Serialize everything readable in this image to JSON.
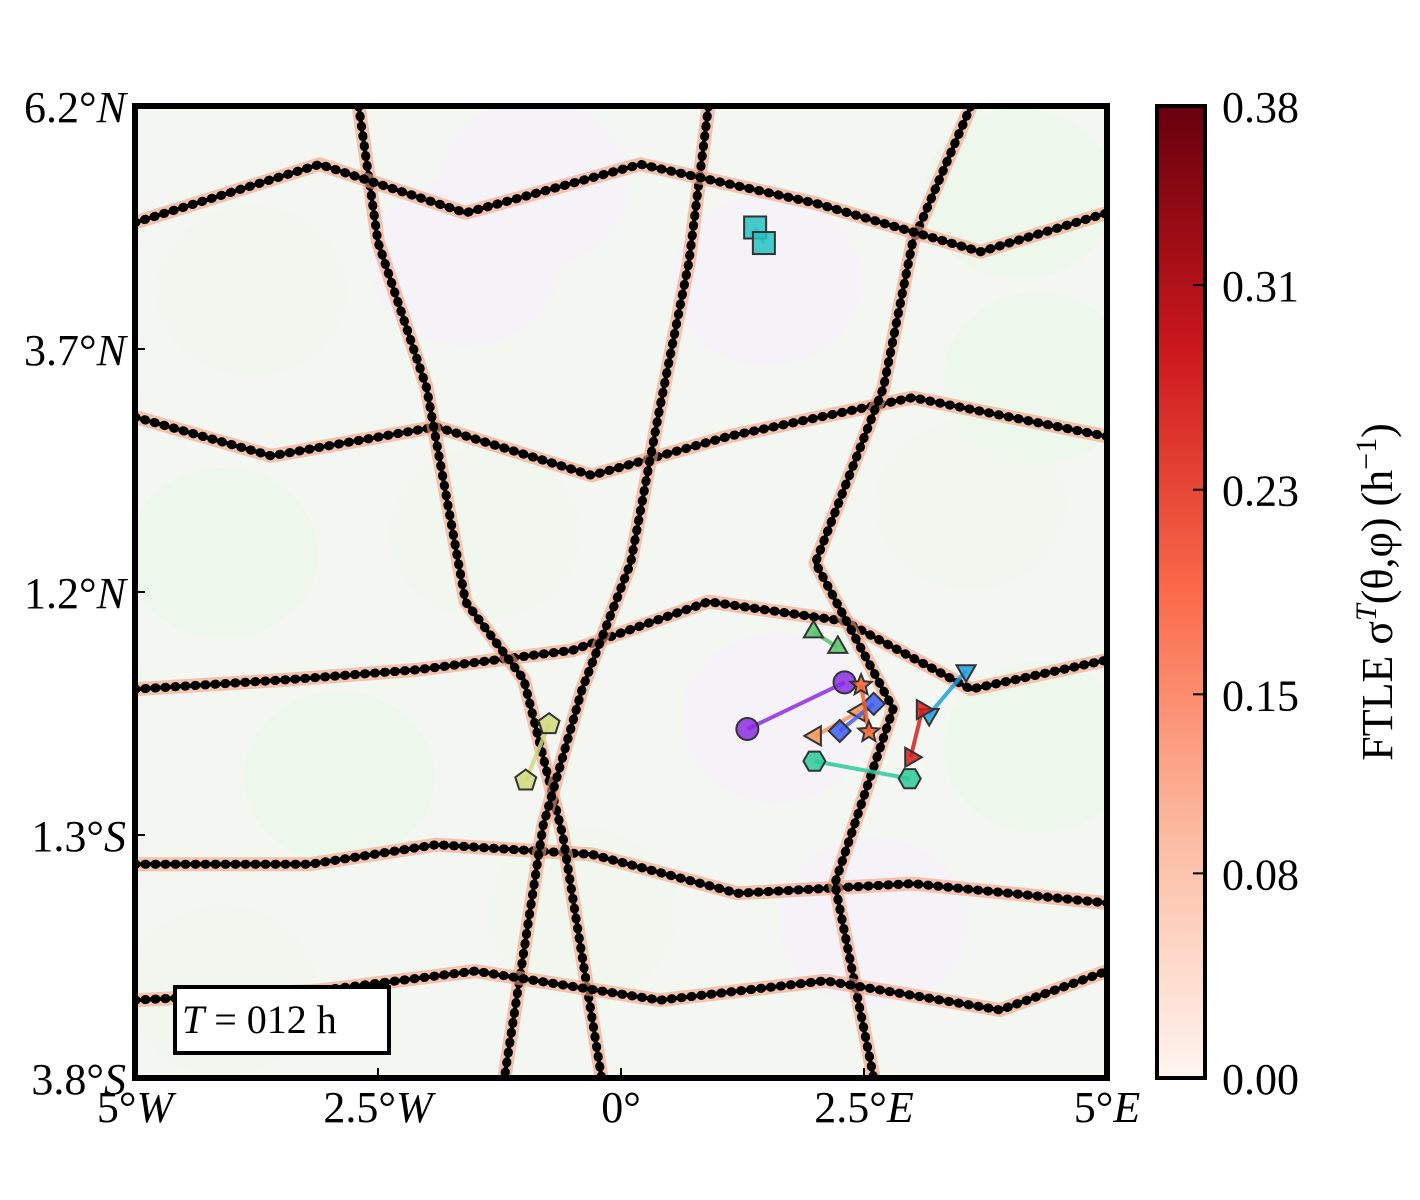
{
  "chart_data": {
    "type": "heatmap",
    "title": "",
    "xlabel": "",
    "ylabel": "",
    "xlim": [
      -5,
      5
    ],
    "ylim": [
      -3.8,
      6.2
    ],
    "x_ticks": [
      {
        "value": -5,
        "label": "5°W"
      },
      {
        "value": -2.5,
        "label": "2.5°W"
      },
      {
        "value": 0,
        "label": "0°"
      },
      {
        "value": 2.5,
        "label": "2.5°E"
      },
      {
        "value": 5,
        "label": "5°E"
      }
    ],
    "y_ticks": [
      {
        "value": 6.2,
        "label": "6.2°N"
      },
      {
        "value": 3.7,
        "label": "3.7°N"
      },
      {
        "value": 1.2,
        "label": "1.2°N"
      },
      {
        "value": -1.3,
        "label": "1.3°S"
      },
      {
        "value": -3.8,
        "label": "3.8°S"
      }
    ],
    "colorbar": {
      "label": "FTLE  σT(θ,φ) (h−1)",
      "label_parts": {
        "prefix": "FTLE  σ",
        "sup": "T",
        "middle": "(θ,φ) (h",
        "unit_sup": "−1",
        "suffix": ")"
      },
      "min": 0.0,
      "max": 0.38,
      "ticks": [
        0.0,
        0.08,
        0.15,
        0.23,
        0.31,
        0.38
      ],
      "tick_labels": [
        "0.00",
        "0.08",
        "0.15",
        "0.23",
        "0.31",
        "0.38"
      ],
      "colormap": "Reds"
    },
    "annotation": {
      "prefix": "T",
      "suffix": " = 012 h"
    },
    "grid": false,
    "cells": [
      {
        "x": -3.8,
        "y": 4.3
      },
      {
        "x": -1.6,
        "y": 4.6
      },
      {
        "x": -4.1,
        "y": 1.6
      },
      {
        "x": -1.4,
        "y": 1.8
      },
      {
        "x": 1.5,
        "y": 4.4
      },
      {
        "x": 4.1,
        "y": 5.3
      },
      {
        "x": 3.6,
        "y": 2.1
      },
      {
        "x": 1.6,
        "y": -0.1
      },
      {
        "x": -2.9,
        "y": -0.7
      },
      {
        "x": -0.4,
        "y": -2.1
      },
      {
        "x": 2.6,
        "y": -2.2
      },
      {
        "x": 4.3,
        "y": -0.4
      },
      {
        "x": -4.1,
        "y": -2.9
      },
      {
        "x": -0.9,
        "y": 5.4
      },
      {
        "x": 4.3,
        "y": 3.4
      }
    ],
    "lanes": [
      [
        [
          -5.0,
          3.0
        ],
        [
          -3.6,
          2.6
        ],
        [
          -1.9,
          2.9
        ],
        [
          -0.3,
          2.4
        ],
        [
          1.1,
          2.8
        ],
        [
          3.0,
          3.2
        ],
        [
          5.0,
          2.8
        ]
      ],
      [
        [
          -5.0,
          0.2
        ],
        [
          -3.4,
          0.3
        ],
        [
          -2.1,
          0.4
        ],
        [
          -0.5,
          0.6
        ],
        [
          0.9,
          1.1
        ],
        [
          2.3,
          0.9
        ],
        [
          3.6,
          0.2
        ],
        [
          5.0,
          0.5
        ]
      ],
      [
        [
          -5.0,
          -1.6
        ],
        [
          -3.2,
          -1.6
        ],
        [
          -1.9,
          -1.4
        ],
        [
          -0.3,
          -1.5
        ],
        [
          1.2,
          -1.9
        ],
        [
          3.0,
          -1.8
        ],
        [
          5.0,
          -2.0
        ]
      ],
      [
        [
          -2.7,
          6.2
        ],
        [
          -2.5,
          4.8
        ],
        [
          -2.0,
          3.3
        ],
        [
          -1.6,
          1.1
        ],
        [
          -1.0,
          0.3
        ],
        [
          -0.6,
          -1.3
        ],
        [
          -0.2,
          -3.8
        ]
      ],
      [
        [
          0.9,
          6.2
        ],
        [
          0.7,
          4.6
        ],
        [
          0.4,
          3.1
        ],
        [
          0.1,
          1.5
        ],
        [
          -0.4,
          0.2
        ],
        [
          -0.8,
          -1.2
        ],
        [
          -1.2,
          -3.8
        ]
      ],
      [
        [
          3.6,
          6.2
        ],
        [
          3.0,
          4.8
        ],
        [
          2.7,
          3.3
        ],
        [
          2.0,
          1.5
        ],
        [
          2.8,
          0.0
        ],
        [
          2.2,
          -1.8
        ],
        [
          2.6,
          -3.8
        ]
      ],
      [
        [
          -5.0,
          5.0
        ],
        [
          -3.1,
          5.6
        ],
        [
          -1.6,
          5.1
        ],
        [
          0.2,
          5.6
        ],
        [
          2.0,
          5.2
        ],
        [
          3.7,
          4.7
        ],
        [
          5.0,
          5.1
        ]
      ],
      [
        [
          -5.0,
          -3.0
        ],
        [
          -3.1,
          -2.9
        ],
        [
          -1.5,
          -2.7
        ],
        [
          0.4,
          -3.0
        ],
        [
          2.1,
          -2.8
        ],
        [
          3.9,
          -3.1
        ],
        [
          5.0,
          -2.7
        ]
      ]
    ],
    "trajectories": [
      {
        "marker": "square",
        "color": "#26c2c4",
        "points": [
          [
            1.38,
            4.95
          ],
          [
            1.47,
            4.79
          ]
        ]
      },
      {
        "marker": "circle",
        "color": "#8a2be2",
        "points": [
          [
            1.3,
            -0.21
          ],
          [
            2.3,
            0.27
          ]
        ]
      },
      {
        "marker": "triangle-up",
        "color": "#56c46d",
        "points": [
          [
            1.98,
            0.79
          ],
          [
            2.23,
            0.63
          ]
        ]
      },
      {
        "marker": "triangle-down",
        "color": "#1e9ee0",
        "points": [
          [
            3.55,
            0.39
          ],
          [
            3.17,
            -0.06
          ]
        ]
      },
      {
        "marker": "triangle-right",
        "color": "#d51f1f",
        "points": [
          [
            2.98,
            -0.5
          ],
          [
            3.1,
            -0.01
          ]
        ]
      },
      {
        "marker": "triangle-left",
        "color": "#f59557",
        "points": [
          [
            2.0,
            -0.28
          ],
          [
            2.45,
            -0.03
          ]
        ]
      },
      {
        "marker": "diamond",
        "color": "#3c5cf2",
        "points": [
          [
            2.25,
            -0.23
          ],
          [
            2.6,
            0.05
          ]
        ]
      },
      {
        "marker": "star",
        "color": "#f4602a",
        "points": [
          [
            2.47,
            0.24
          ],
          [
            2.55,
            -0.24
          ]
        ]
      },
      {
        "marker": "hexagon",
        "color": "#2cc99a",
        "points": [
          [
            1.99,
            -0.54
          ],
          [
            2.97,
            -0.72
          ]
        ]
      },
      {
        "marker": "pentagon",
        "color": "#cfd97a",
        "points": [
          [
            -0.98,
            -0.74
          ],
          [
            -0.74,
            -0.16
          ]
        ]
      }
    ]
  }
}
